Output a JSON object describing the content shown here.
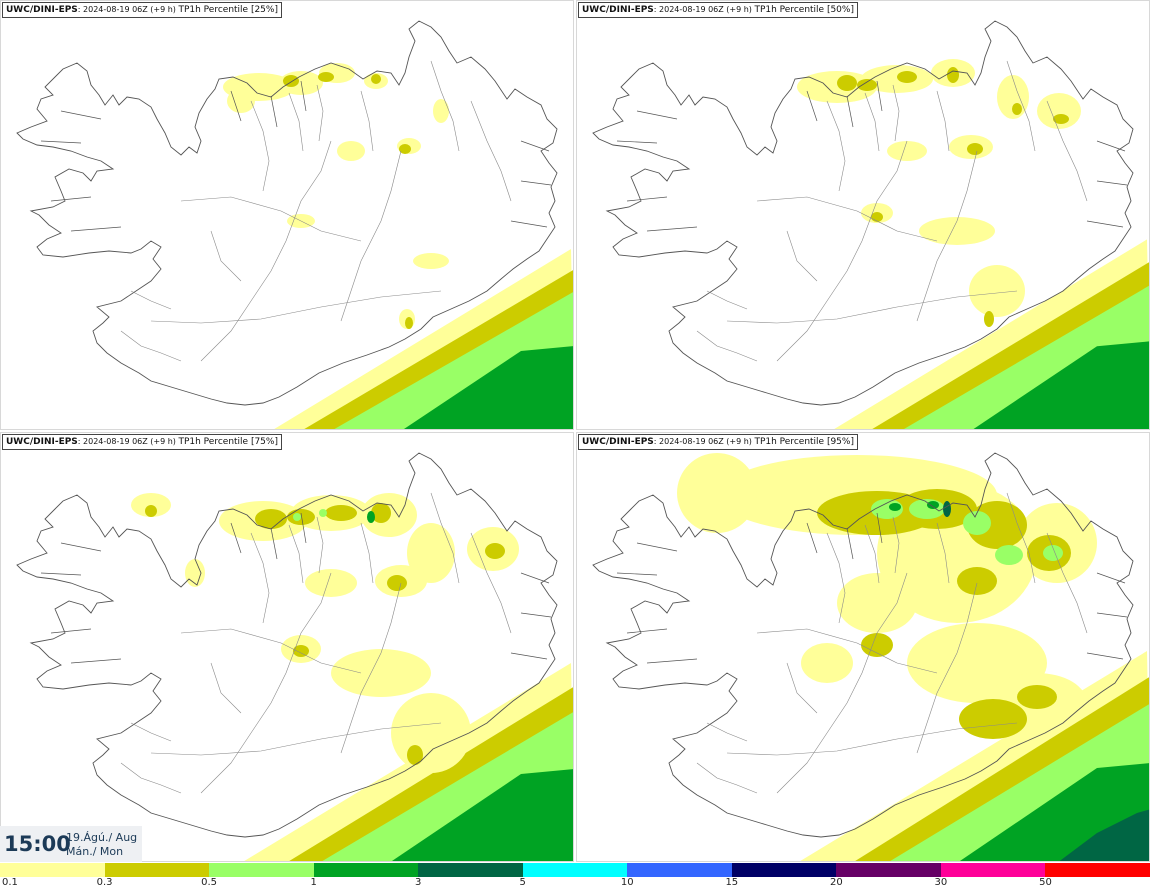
{
  "panels": [
    {
      "model": "UWC/DINI-EPS",
      "run_info": ": 2024-08-19 06Z (+9 h)",
      "product": "TP1h Percentile [25%]"
    },
    {
      "model": "UWC/DINI-EPS",
      "run_info": ": 2024-08-19 06Z (+9 h)",
      "product": "TP1h Percentile [50%]"
    },
    {
      "model": "UWC/DINI-EPS",
      "run_info": ": 2024-08-19 06Z (+9 h)",
      "product": "TP1h Percentile [75%]"
    },
    {
      "model": "UWC/DINI-EPS",
      "run_info": ": 2024-08-19 06Z (+9 h)",
      "product": "TP1h Percentile [95%]"
    }
  ],
  "time": {
    "clock": "15:00",
    "date_line1": "19.Ágú./ Aug",
    "date_line2": "Mán./ Mon"
  },
  "legend": {
    "ticks": [
      "0.1",
      "0.3",
      "0.5",
      "1",
      "3",
      "5",
      "10",
      "15",
      "20",
      "30",
      "50"
    ],
    "colors": [
      "#ffff99",
      "#cccc00",
      "#99ff66",
      "#00a323",
      "#006644",
      "#00ffff",
      "#3366ff",
      "#000066",
      "#660066",
      "#ff0099",
      "#ff0000"
    ]
  },
  "colors": {
    "coast": "#555555",
    "light_yellow": "#ffff99",
    "olive": "#cccc00",
    "light_green": "#99ff66",
    "green": "#00a323",
    "dark_green": "#006644"
  }
}
